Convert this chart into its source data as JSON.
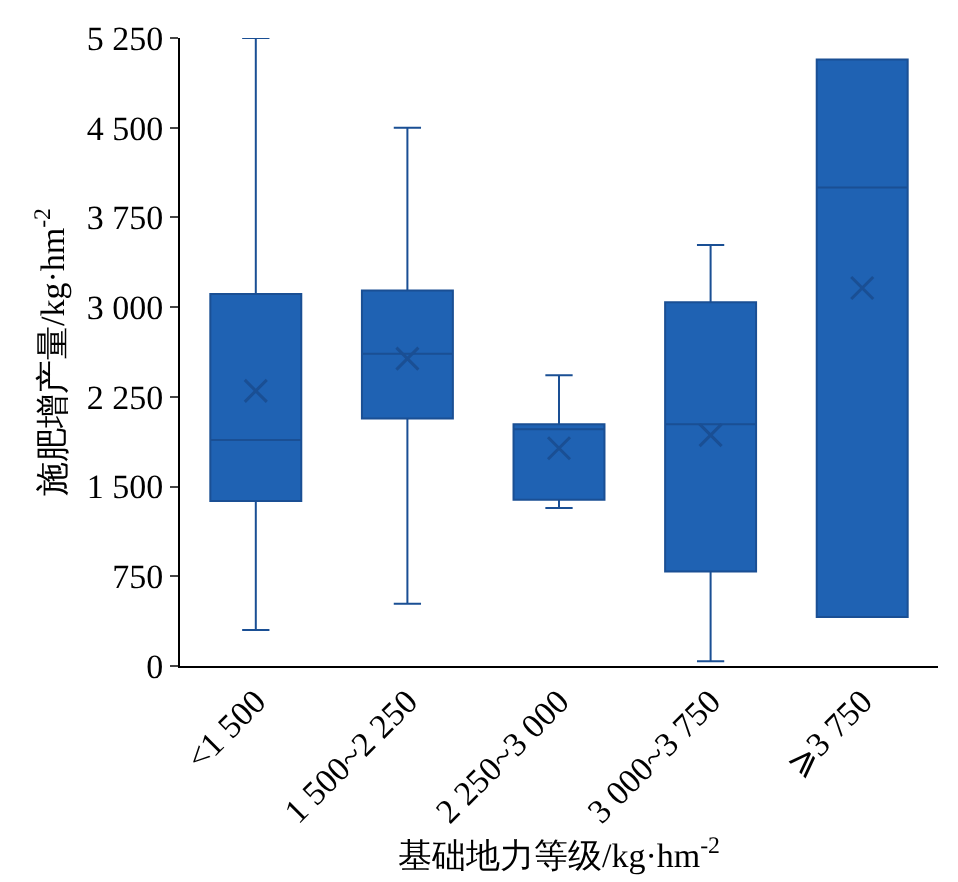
{
  "chart_data": {
    "type": "box",
    "xlabel": "基础地力等级/kg·hm$^{-2}$",
    "ylabel": "施肥增产量/kg·hm$^{-2}$",
    "categories": [
      "<1 500",
      "1 500~2 250",
      "2 250~3 000",
      "3 000~3 750",
      "⩾3 750"
    ],
    "color": "#1f62b3",
    "marker": "cross",
    "grid": false,
    "ylim": [
      0,
      5250
    ],
    "yticks": [
      {
        "value": 0,
        "label": "0"
      },
      {
        "value": 750,
        "label": "750"
      },
      {
        "value": 1500,
        "label": "1 500"
      },
      {
        "value": 2250,
        "label": "2 250"
      },
      {
        "value": 3000,
        "label": "3 000"
      },
      {
        "value": 3750,
        "label": "3 750"
      },
      {
        "value": 4500,
        "label": "4 500"
      },
      {
        "value": 5250,
        "label": "5 250"
      }
    ],
    "boxes": [
      {
        "low": 300,
        "q1": 1380,
        "median": 1890,
        "q3": 3110,
        "high": 5250,
        "mean": 2300
      },
      {
        "low": 520,
        "q1": 2070,
        "median": 2610,
        "q3": 3140,
        "high": 4500,
        "mean": 2570
      },
      {
        "low": 1320,
        "q1": 1390,
        "median": 1980,
        "q3": 2020,
        "high": 2430,
        "mean": 1820
      },
      {
        "low": 40,
        "q1": 790,
        "median": 2020,
        "q3": 3040,
        "high": 3520,
        "mean": 1930
      },
      {
        "low": 410,
        "q1": 410,
        "median": 4000,
        "q3": 5070,
        "high": 5070,
        "mean": 3160
      }
    ]
  }
}
